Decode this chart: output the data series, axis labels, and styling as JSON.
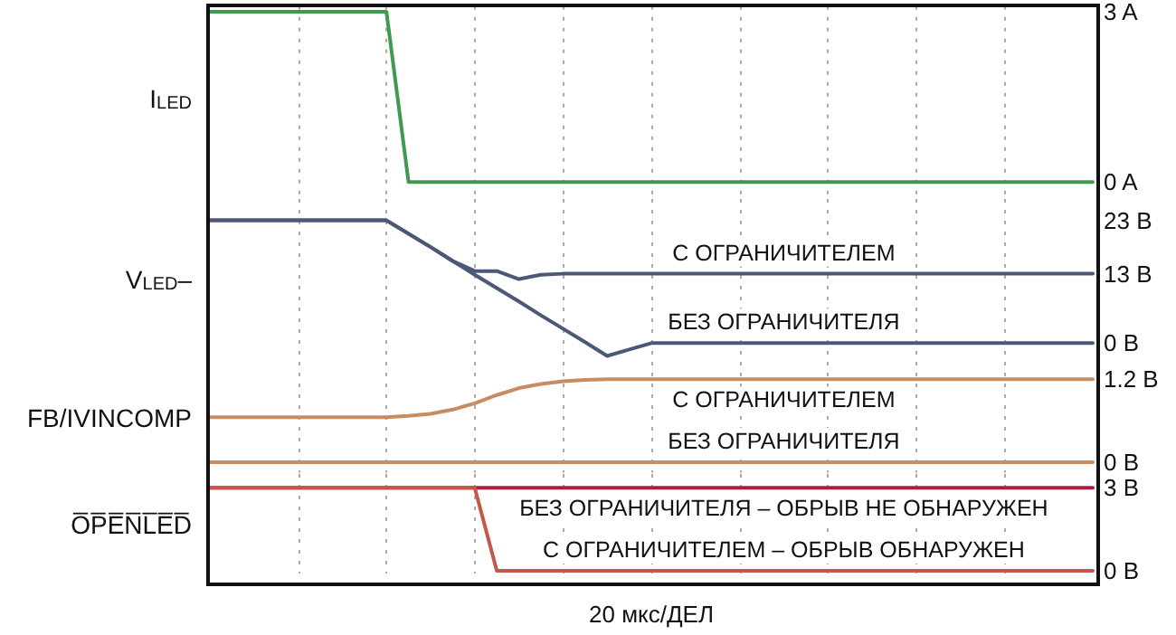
{
  "chart_data": [
    {
      "type": "line",
      "ylabel": "I$_{LED}$",
      "categories": [
        null,
        null,
        null,
        null,
        null,
        null,
        null,
        null,
        null,
        null,
        null,
        null,
        null,
        null,
        null,
        null,
        null,
        null,
        null,
        null,
        null,
        null,
        null,
        null,
        null,
        null,
        null,
        null,
        null,
        null,
        null,
        null,
        null,
        null,
        null,
        null,
        null,
        null,
        null,
        null,
        null
      ],
      "ylim": [
        -0.3,
        3.1
      ],
      "yticks": [
        {
          "value": 0,
          "label": "0 A"
        },
        {
          "value": 3,
          "label": "3 A"
        }
      ],
      "tick_labels": "y",
      "grid": "x",
      "marker": "none",
      "line_style": "solid",
      "series": [
        {
          "color": "#3f9a4f",
          "values": [
            3,
            3,
            3,
            3,
            3,
            3,
            3,
            3,
            3,
            0,
            0,
            0,
            0,
            0,
            0,
            0,
            0,
            0,
            0,
            0,
            0,
            0,
            0,
            0,
            0,
            0,
            0,
            0,
            0,
            0,
            0,
            0,
            0,
            0,
            0,
            0,
            0,
            0,
            0,
            0,
            0
          ]
        }
      ]
    },
    {
      "type": "line",
      "ylabel": "V$_{LED}$–",
      "categories": [
        null,
        null,
        null,
        null,
        null,
        null,
        null,
        null,
        null,
        null,
        null,
        null,
        null,
        null,
        null,
        null,
        null,
        null,
        null,
        null,
        null,
        null,
        null,
        null,
        null,
        null,
        null,
        null,
        null,
        null,
        null,
        null,
        null,
        null,
        null,
        null,
        null,
        null,
        null,
        null,
        null
      ],
      "ylim": [
        -3.5,
        27
      ],
      "yticks": [
        {
          "value": 0,
          "label": "0 В"
        },
        {
          "value": 13,
          "label": "13 В"
        },
        {
          "value": 23,
          "label": "23 В"
        }
      ],
      "tick_labels": "y",
      "grid": "x",
      "marker": "none",
      "line_style": "solid",
      "series": [
        {
          "name": "С ОГРАНИЧИТЕЛЕМ",
          "color": "#4b5878",
          "values": [
            23,
            23,
            23,
            23,
            23,
            23,
            23,
            23,
            23,
            20.5,
            18,
            15.4,
            13.5,
            13.5,
            12,
            12.8,
            13,
            13,
            13,
            13,
            13,
            13,
            13,
            13,
            13,
            13,
            13,
            13,
            13,
            13,
            13,
            13,
            13,
            13,
            13,
            13,
            13,
            13,
            13,
            13,
            13
          ]
        },
        {
          "name": "БЕЗ ОГРАНИЧИТЕЛЯ",
          "color": "#4b5878",
          "values": [
            23,
            23,
            23,
            23,
            23,
            23,
            23,
            23,
            23,
            20.5,
            18,
            15.4,
            12.8,
            10.3,
            7.8,
            5.2,
            2.7,
            0.2,
            -2.4,
            -1.2,
            0,
            0,
            0,
            0,
            0,
            0,
            0,
            0,
            0,
            0,
            0,
            0,
            0,
            0,
            0,
            0,
            0,
            0,
            0,
            0,
            0
          ]
        }
      ]
    },
    {
      "type": "line",
      "ylabel": "FB/IVINCOMP",
      "categories": [
        null,
        null,
        null,
        null,
        null,
        null,
        null,
        null,
        null,
        null,
        null,
        null,
        null,
        null,
        null,
        null,
        null,
        null,
        null,
        null,
        null,
        null,
        null,
        null,
        null,
        null,
        null,
        null,
        null,
        null,
        null,
        null,
        null,
        null,
        null,
        null,
        null,
        null,
        null,
        null,
        null
      ],
      "ylim": [
        -0.15,
        1.45
      ],
      "yticks": [
        {
          "value": 0,
          "label": "0 В"
        },
        {
          "value": 1.2,
          "label": "1.2 В"
        }
      ],
      "tick_labels": "y",
      "grid": "x",
      "marker": "none",
      "line_style": "solid",
      "series": [
        {
          "name": "С ОГРАНИЧИТЕЛЕМ",
          "color": "#c98b62",
          "values": [
            0.65,
            0.65,
            0.65,
            0.65,
            0.65,
            0.65,
            0.65,
            0.65,
            0.65,
            0.67,
            0.7,
            0.76,
            0.85,
            0.97,
            1.07,
            1.13,
            1.17,
            1.19,
            1.2,
            1.2,
            1.2,
            1.2,
            1.2,
            1.2,
            1.2,
            1.2,
            1.2,
            1.2,
            1.2,
            1.2,
            1.2,
            1.2,
            1.2,
            1.2,
            1.2,
            1.2,
            1.2,
            1.2,
            1.2,
            1.2,
            1.2
          ]
        },
        {
          "name": "БЕЗ ОГРАНИЧИТЕЛЯ",
          "color": "#c98b62",
          "values": [
            0,
            0,
            0,
            0,
            0,
            0,
            0,
            0,
            0,
            0,
            0,
            0,
            0,
            0,
            0,
            0,
            0,
            0,
            0,
            0,
            0,
            0,
            0,
            0,
            0,
            0,
            0,
            0,
            0,
            0,
            0,
            0,
            0,
            0,
            0,
            0,
            0,
            0,
            0,
            0,
            0
          ]
        }
      ]
    },
    {
      "type": "line",
      "ylabel": "O̅P̅E̅N̅L̅E̅D̅",
      "xlabel": "20 мкс/ДЕЛ",
      "categories": [
        null,
        null,
        null,
        null,
        null,
        null,
        null,
        null,
        null,
        null,
        null,
        null,
        null,
        null,
        null,
        null,
        null,
        null,
        null,
        null,
        null,
        null,
        null,
        null,
        null,
        null,
        null,
        null,
        null,
        null,
        null,
        null,
        null,
        null,
        null,
        null,
        null,
        null,
        null,
        null,
        null
      ],
      "ylim": [
        -0.1,
        3.5
      ],
      "yticks": [
        {
          "value": 0,
          "label": "0 В"
        },
        {
          "value": 3,
          "label": "3 В"
        }
      ],
      "tick_labels": "y",
      "grid": "x",
      "marker": "none",
      "line_style": "solid",
      "series": [
        {
          "name": "БЕЗ ОГРАНИЧИТЕЛЯ – ОБРЫВ НЕ ОБНАРУЖЕН",
          "color": "#b01c3c",
          "values": [
            3,
            3,
            3,
            3,
            3,
            3,
            3,
            3,
            3,
            3,
            3,
            3,
            3,
            3,
            3,
            3,
            3,
            3,
            3,
            3,
            3,
            3,
            3,
            3,
            3,
            3,
            3,
            3,
            3,
            3,
            3,
            3,
            3,
            3,
            3,
            3,
            3,
            3,
            3,
            3,
            3
          ]
        },
        {
          "name": "С ОГРАНИЧИТЕЛЕМ – ОБРЫВ ОБНАРУЖЕН",
          "color": "#c2574a",
          "values": [
            3,
            3,
            3,
            3,
            3,
            3,
            3,
            3,
            3,
            3,
            3,
            3,
            3,
            0,
            0,
            0,
            0,
            0,
            0,
            0,
            0,
            0,
            0,
            0,
            0,
            0,
            0,
            0,
            0,
            0,
            0,
            0,
            0,
            0,
            0,
            0,
            0,
            0,
            0,
            0,
            0
          ]
        }
      ]
    }
  ]
}
